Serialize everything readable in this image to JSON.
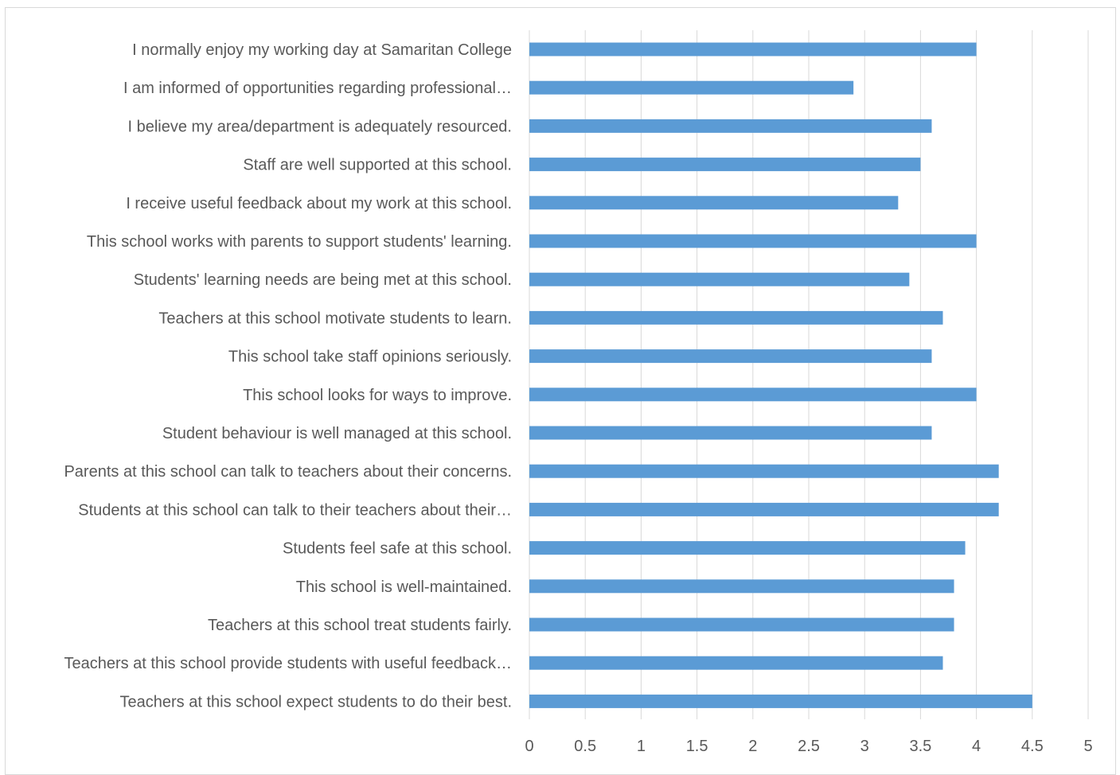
{
  "chart_data": {
    "type": "bar",
    "orientation": "horizontal",
    "title": "",
    "xlabel": "",
    "ylabel": "",
    "xlim": [
      0,
      5
    ],
    "x_ticks": [
      "0",
      "0.5",
      "1",
      "1.5",
      "2",
      "2.5",
      "3",
      "3.5",
      "4",
      "4.5",
      "5"
    ],
    "grid": true,
    "legend": "none",
    "bar_color": "#5b9bd5",
    "grid_color": "#d9d9d9",
    "label_color": "#595959",
    "categories": [
      "I normally enjoy my working day at Samaritan College",
      "I am informed of opportunities regarding professional…",
      "I believe my area/department is adequately resourced.",
      "Staff are well supported at this school.",
      "I receive useful feedback about my work at this school.",
      "This school works with parents to support students' learning.",
      "Students' learning needs are being met at this school.",
      "Teachers at this school motivate students to learn.",
      "This school take staff opinions seriously.",
      "This school looks for ways to improve.",
      "Student behaviour is well managed at this school.",
      "Parents at this school can talk to teachers about their concerns.",
      "Students at this school can talk to their teachers about their…",
      "Students feel safe at this school.",
      "This school is well-maintained.",
      "Teachers at this school treat students fairly.",
      "Teachers at this school provide students with useful feedback…",
      "Teachers at this school expect students to do their best."
    ],
    "values": [
      4.0,
      2.9,
      3.6,
      3.5,
      3.3,
      4.0,
      3.4,
      3.7,
      3.6,
      4.0,
      3.6,
      4.2,
      4.2,
      3.9,
      3.8,
      3.8,
      3.7,
      4.5
    ]
  }
}
